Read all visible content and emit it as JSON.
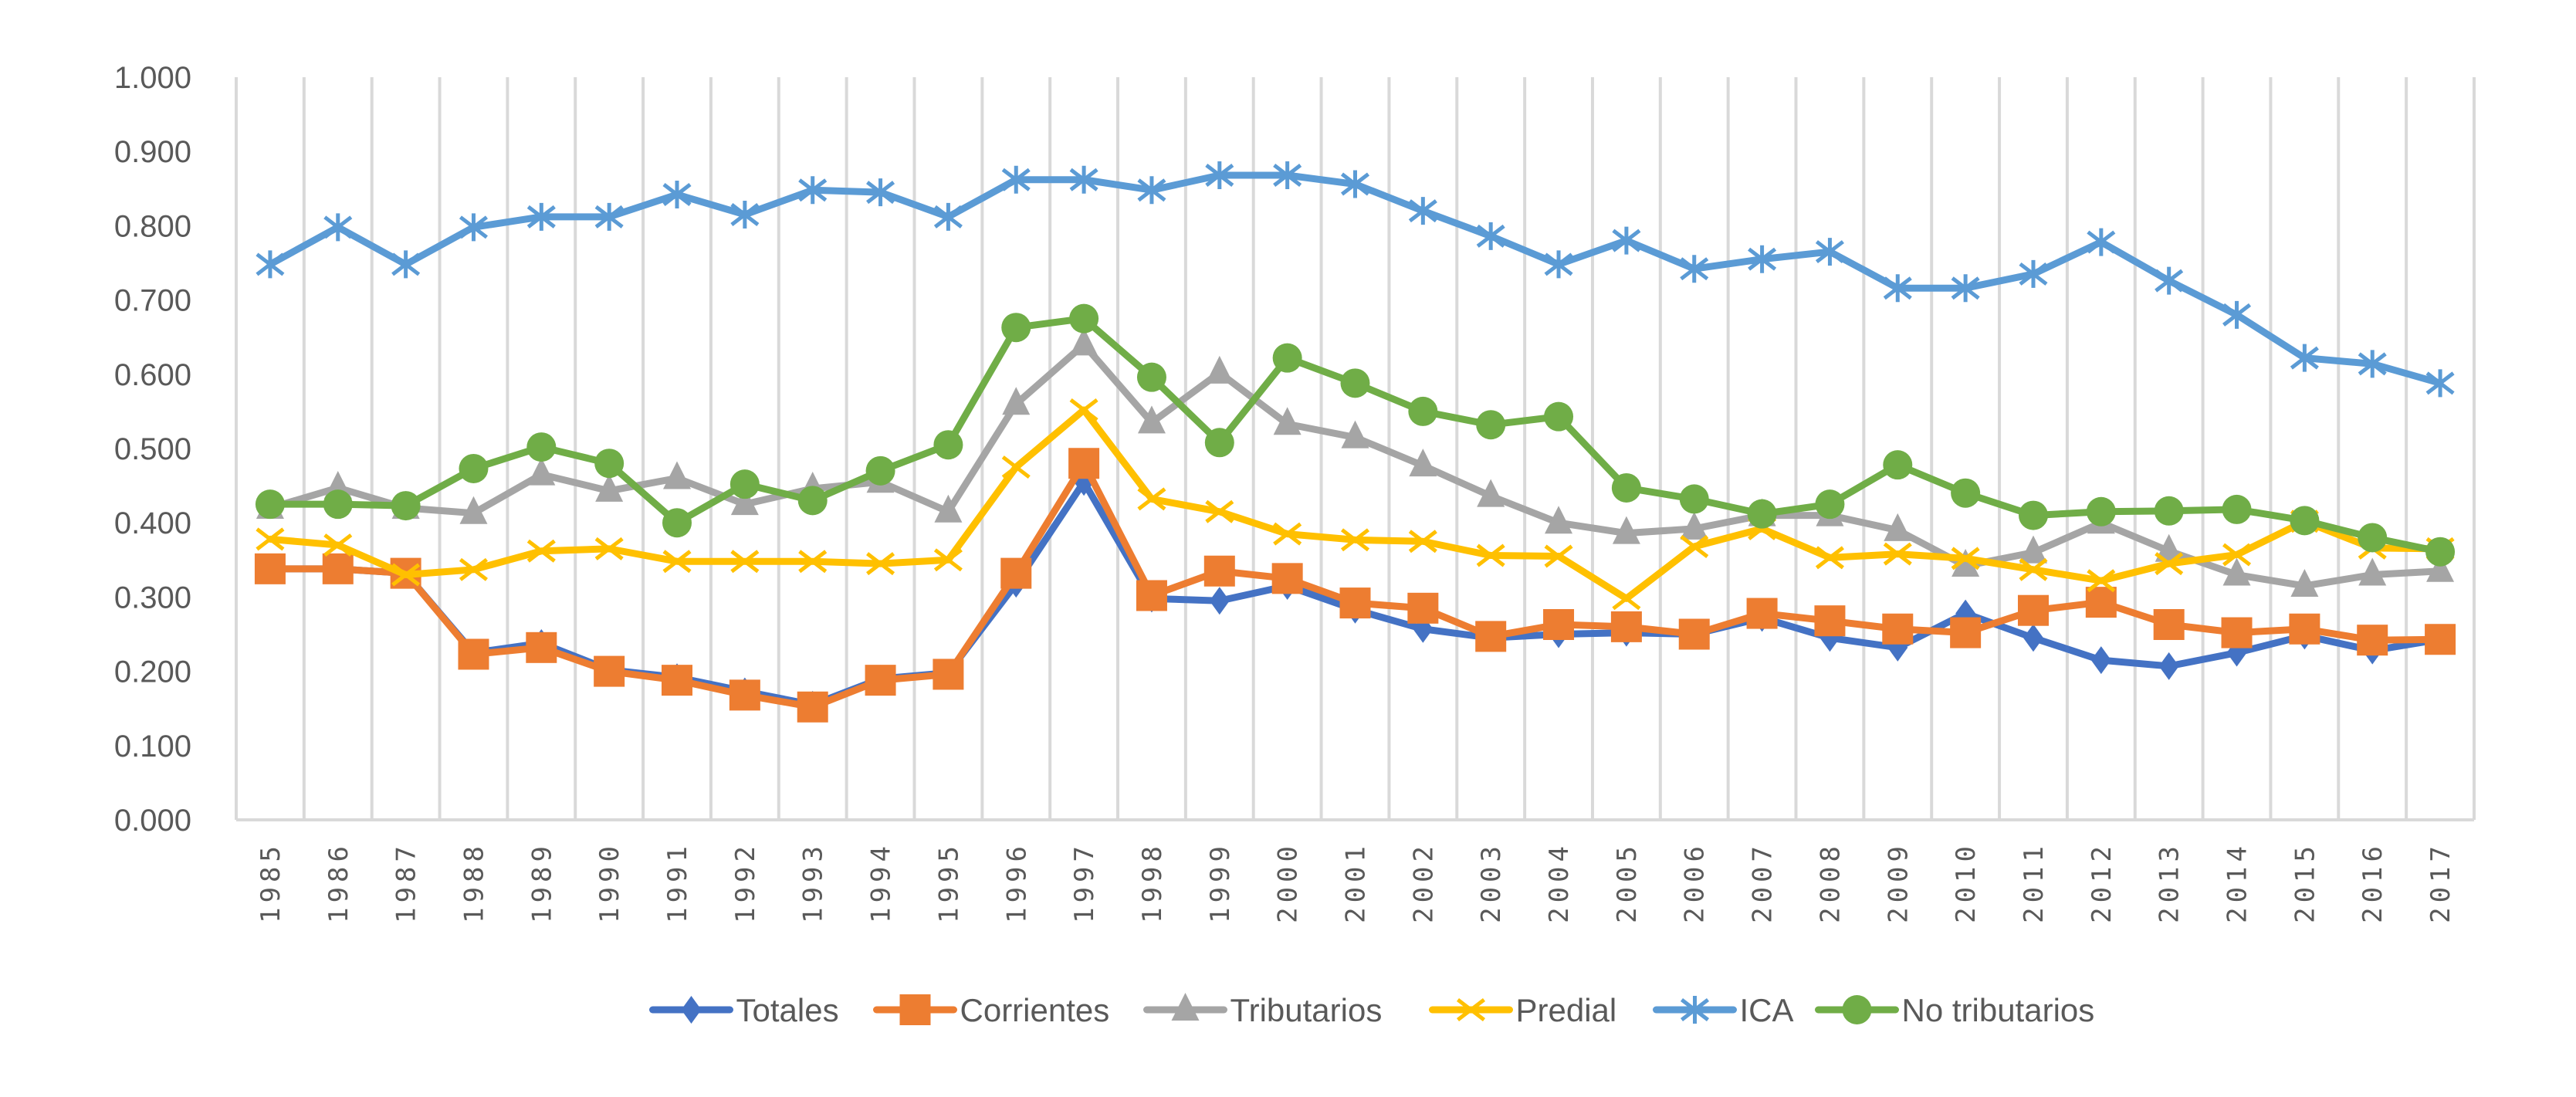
{
  "chart_data": {
    "type": "line",
    "title": "",
    "xlabel": "",
    "ylabel": "",
    "ylim": [
      0,
      1
    ],
    "yticks": [
      "0.000",
      "0.100",
      "0.200",
      "0.300",
      "0.400",
      "0.500",
      "0.600",
      "0.700",
      "0.800",
      "0.900",
      "1.000"
    ],
    "grid": "vertical",
    "legend_position": "bottom",
    "categories": [
      "1985",
      "1986",
      "1987",
      "1988",
      "1989",
      "1990",
      "1991",
      "1992",
      "1993",
      "1994",
      "1995",
      "1996",
      "1997",
      "1998",
      "1999",
      "2000",
      "2001",
      "2002",
      "2003",
      "2004",
      "2005",
      "2006",
      "2007",
      "2008",
      "2009",
      "2010",
      "2011",
      "2012",
      "2013",
      "2014",
      "2015",
      "2016",
      "2017"
    ],
    "series": [
      {
        "name": "Totales",
        "color": "#4472C4",
        "marker": "diamond",
        "values": [
          0.338,
          0.338,
          0.332,
          0.225,
          0.238,
          0.202,
          0.192,
          0.173,
          0.155,
          0.19,
          0.198,
          0.318,
          0.455,
          0.298,
          0.295,
          0.315,
          0.283,
          0.257,
          0.245,
          0.25,
          0.252,
          0.25,
          0.272,
          0.245,
          0.232,
          0.278,
          0.245,
          0.215,
          0.207,
          0.225,
          0.248,
          0.228,
          0.243
        ]
      },
      {
        "name": "Corrientes",
        "color": "#ED7D31",
        "marker": "square",
        "values": [
          0.338,
          0.338,
          0.332,
          0.223,
          0.232,
          0.2,
          0.188,
          0.168,
          0.152,
          0.188,
          0.196,
          0.332,
          0.48,
          0.302,
          0.335,
          0.325,
          0.292,
          0.285,
          0.247,
          0.263,
          0.26,
          0.25,
          0.278,
          0.268,
          0.257,
          0.252,
          0.282,
          0.293,
          0.263,
          0.252,
          0.257,
          0.242,
          0.243
        ]
      },
      {
        "name": "Tributarios",
        "color": "#A5A5A5",
        "marker": "triangle",
        "values": [
          0.42,
          0.447,
          0.42,
          0.413,
          0.465,
          0.443,
          0.46,
          0.425,
          0.446,
          0.455,
          0.415,
          0.56,
          0.64,
          0.535,
          0.602,
          0.533,
          0.515,
          0.477,
          0.436,
          0.4,
          0.386,
          0.392,
          0.41,
          0.41,
          0.39,
          0.342,
          0.36,
          0.4,
          0.362,
          0.33,
          0.315,
          0.33,
          0.335
        ]
      },
      {
        "name": "Predial",
        "color": "#FFC000",
        "marker": "x",
        "values": [
          0.378,
          0.37,
          0.33,
          0.337,
          0.362,
          0.365,
          0.348,
          0.348,
          0.348,
          0.345,
          0.35,
          0.475,
          0.552,
          0.432,
          0.415,
          0.385,
          0.377,
          0.375,
          0.356,
          0.355,
          0.298,
          0.368,
          0.392,
          0.353,
          0.358,
          0.352,
          0.337,
          0.322,
          0.345,
          0.357,
          0.402,
          0.366,
          0.365
        ]
      },
      {
        "name": "ICA",
        "color": "#5B9BD5",
        "marker": "star",
        "values": [
          0.748,
          0.798,
          0.748,
          0.798,
          0.812,
          0.812,
          0.842,
          0.815,
          0.848,
          0.845,
          0.812,
          0.862,
          0.862,
          0.848,
          0.868,
          0.868,
          0.856,
          0.82,
          0.786,
          0.748,
          0.78,
          0.742,
          0.755,
          0.765,
          0.716,
          0.716,
          0.735,
          0.778,
          0.726,
          0.68,
          0.622,
          0.614,
          0.588
        ]
      },
      {
        "name": "No tributarios",
        "color": "#70AD47",
        "marker": "circle",
        "values": [
          0.425,
          0.425,
          0.423,
          0.473,
          0.502,
          0.48,
          0.4,
          0.452,
          0.43,
          0.47,
          0.505,
          0.663,
          0.675,
          0.596,
          0.508,
          0.622,
          0.588,
          0.55,
          0.532,
          0.543,
          0.447,
          0.432,
          0.412,
          0.425,
          0.478,
          0.44,
          0.41,
          0.415,
          0.416,
          0.418,
          0.403,
          0.38,
          0.361
        ]
      }
    ]
  }
}
